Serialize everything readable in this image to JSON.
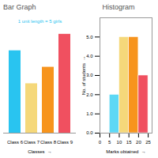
{
  "chart_data": [
    {
      "type": "bar",
      "title": "Bar Graph",
      "subtitle": "1 unit length = 5 girls",
      "categories": [
        "Class 6",
        "Class 7",
        "Class 8",
        "Class 9"
      ],
      "values": [
        5,
        3,
        4,
        6
      ],
      "colors": [
        "#29c4f0",
        "#f5d87a",
        "#f7941d",
        "#f05060"
      ],
      "xlabel": "Classes  →",
      "ylim": [
        0,
        7
      ],
      "tick_labels": "x"
    },
    {
      "type": "histogram",
      "title": "Histogram",
      "bins": [
        0,
        5,
        10,
        15,
        20,
        25
      ],
      "values": [
        0,
        2,
        5,
        5,
        3
      ],
      "colors": [
        "#ffffff00",
        "#5dd8f5",
        "#f5d87a",
        "#f7941d",
        "#f05060"
      ],
      "xlabel": "Marks obtained  →",
      "ylabel": "No. of students  →",
      "xlim": [
        0,
        27
      ],
      "ylim": [
        0,
        6
      ],
      "xticks": [
        0,
        5,
        10,
        15,
        20,
        25
      ],
      "yticks": [
        0,
        1,
        2,
        3,
        4,
        5
      ]
    }
  ]
}
